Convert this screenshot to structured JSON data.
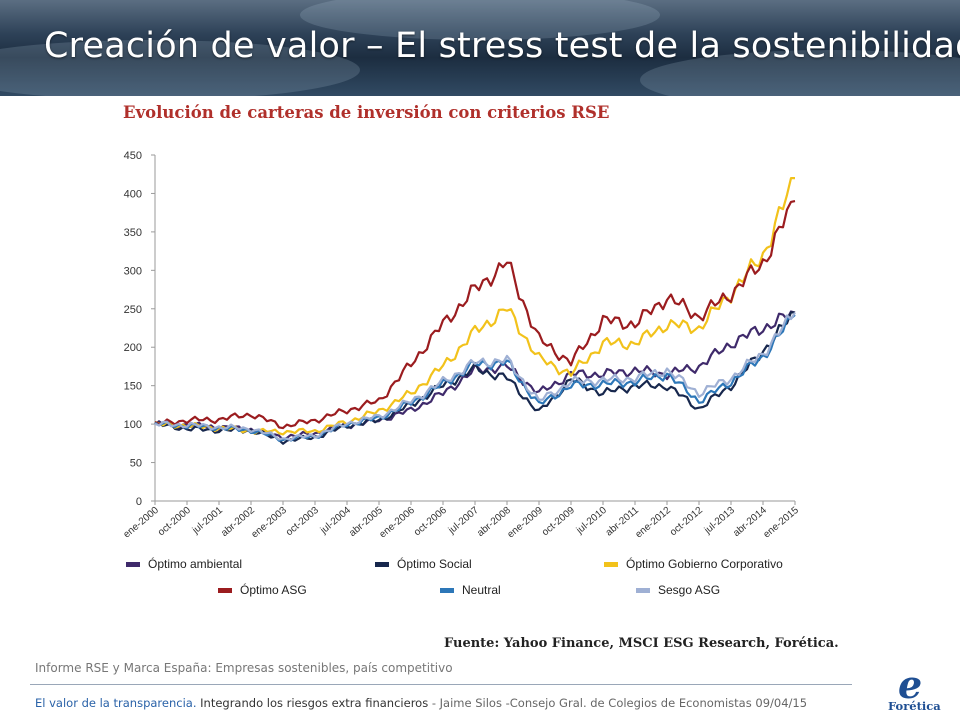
{
  "slide": {
    "title": "Creación de valor – El stress test de la sostenibilidad",
    "note": "Informe RSE y Marca España: Empresas sostenibles,  país competitivo",
    "source": "Fuente: Yahoo Finance, MSCI ESG Research, Forética.",
    "footer": {
      "part1": "El valor de la transparencia.",
      "part2": " Integrando los riesgos extra financieros",
      "part3": " - Jaime Silos  -Consejo Gral. de Colegios de Economistas",
      "date": " 09/04/15"
    },
    "logo_text": "Forética",
    "logo_letter": "e"
  },
  "chart_data": {
    "type": "line",
    "title": "Evolución de carteras de inversión con criterios RSE",
    "xlabel": "",
    "ylabel": "",
    "ylim": [
      0,
      450
    ],
    "yticks": [
      0,
      50,
      100,
      150,
      200,
      250,
      300,
      350,
      400,
      450
    ],
    "grid": false,
    "legend_position": "bottom",
    "categories": [
      "ene-2000",
      "oct-2000",
      "jul-2001",
      "abr-2002",
      "ene-2003",
      "oct-2003",
      "jul-2004",
      "abr-2005",
      "ene-2006",
      "oct-2006",
      "jul-2007",
      "abr-2008",
      "ene-2009",
      "oct-2009",
      "jul-2010",
      "abr-2011",
      "ene-2012",
      "oct-2012",
      "jul-2013",
      "abr-2014",
      "ene-2015"
    ],
    "series": [
      {
        "name": "Óptimo ambiental",
        "color": "#3f2a6b",
        "values": [
          100,
          99,
          96,
          93,
          83,
          88,
          98,
          105,
          118,
          140,
          170,
          175,
          140,
          165,
          165,
          170,
          165,
          175,
          205,
          225,
          245
        ]
      },
      {
        "name": "Óptimo Social",
        "color": "#17274d",
        "values": [
          100,
          94,
          92,
          92,
          78,
          83,
          98,
          105,
          125,
          150,
          172,
          160,
          115,
          158,
          140,
          150,
          150,
          120,
          150,
          195,
          245
        ]
      },
      {
        "name": "Óptimo Gobierno Corporativo",
        "color": "#f2c21b",
        "values": [
          100,
          98,
          95,
          91,
          90,
          91,
          103,
          117,
          140,
          175,
          220,
          250,
          185,
          165,
          205,
          205,
          230,
          225,
          270,
          320,
          420
        ]
      },
      {
        "name": "Óptimo ASG",
        "color": "#9b1c1f",
        "values": [
          100,
          105,
          106,
          113,
          97,
          105,
          118,
          130,
          178,
          230,
          275,
          310,
          210,
          180,
          235,
          230,
          265,
          240,
          270,
          310,
          390
        ]
      },
      {
        "name": "Neutral",
        "color": "#2d77b8",
        "values": [
          100,
          98,
          95,
          92,
          80,
          84,
          100,
          108,
          128,
          152,
          178,
          180,
          125,
          150,
          152,
          155,
          165,
          130,
          155,
          188,
          242
        ]
      },
      {
        "name": "Sesgo ASG",
        "color": "#9fb0d4",
        "values": [
          100,
          99,
          96,
          94,
          81,
          85,
          101,
          110,
          130,
          155,
          180,
          183,
          130,
          155,
          157,
          160,
          170,
          140,
          160,
          192,
          245
        ]
      }
    ]
  }
}
